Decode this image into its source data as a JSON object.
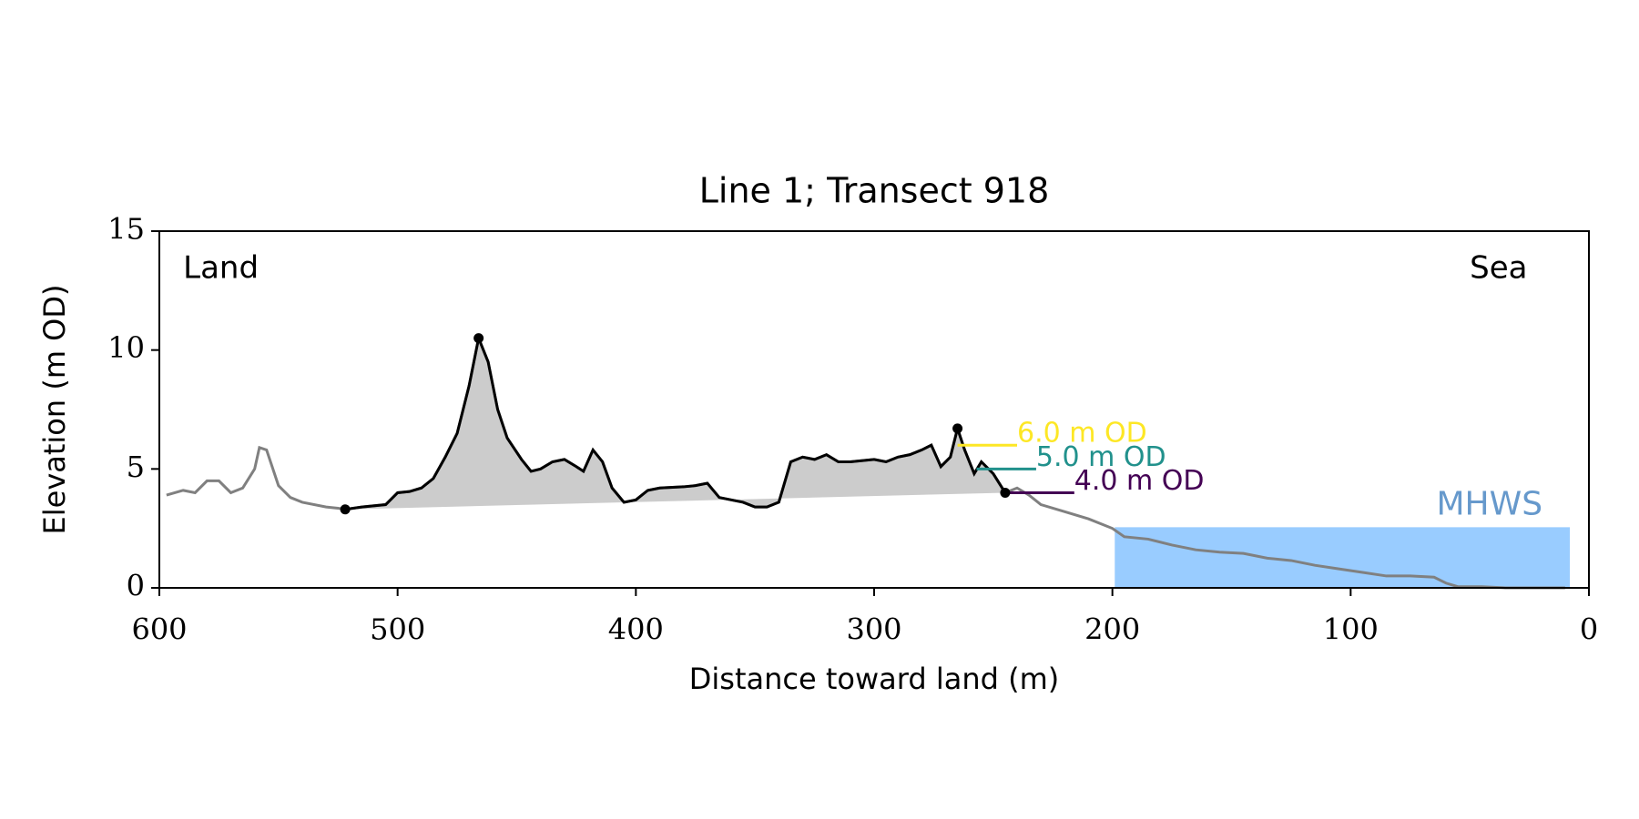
{
  "chart_data": {
    "type": "line",
    "title": "Line 1; Transect 918",
    "xlabel": "Distance toward land (m)",
    "ylabel": "Elevation (m OD)",
    "xlim": [
      600,
      0
    ],
    "ylim": [
      0,
      15
    ],
    "xticks": [
      600,
      500,
      400,
      300,
      200,
      100,
      0
    ],
    "yticks": [
      0,
      5,
      10,
      15
    ],
    "annotations": [
      {
        "text": "Land",
        "x": 590,
        "y": 13.4
      },
      {
        "text": "Sea",
        "x": 50,
        "y": 13.4
      }
    ],
    "series": [
      {
        "color": "#808080",
        "x": [
          597,
          590,
          585,
          580,
          575,
          570,
          565,
          560,
          558,
          555,
          550,
          545,
          540,
          530,
          525,
          522,
          515,
          505,
          500,
          495,
          490,
          485,
          480,
          475,
          470,
          466,
          462,
          458,
          454,
          448,
          444,
          440,
          435,
          430,
          425,
          422,
          418,
          414,
          410,
          405,
          400,
          395,
          390,
          380,
          375,
          370,
          365,
          360,
          355,
          350,
          345,
          340,
          335,
          330,
          325,
          320,
          315,
          310,
          300,
          295,
          290,
          285,
          280,
          276,
          272,
          268,
          265,
          262,
          258,
          255,
          250,
          245,
          240,
          235,
          230,
          220,
          210,
          200,
          195,
          185,
          175,
          165,
          155,
          145,
          135,
          125,
          115,
          105,
          95,
          85,
          75,
          65,
          60,
          55,
          45,
          35,
          20,
          10
        ],
        "values": [
          3.9,
          4.1,
          4.0,
          4.5,
          4.5,
          4.0,
          4.2,
          5.0,
          5.9,
          5.8,
          4.3,
          3.8,
          3.6,
          3.4,
          3.35,
          3.3,
          3.4,
          3.5,
          4.0,
          4.05,
          4.2,
          4.6,
          5.5,
          6.5,
          8.5,
          10.5,
          9.5,
          7.5,
          6.3,
          5.4,
          4.9,
          5.0,
          5.3,
          5.4,
          5.1,
          4.9,
          5.8,
          5.3,
          4.2,
          3.6,
          3.7,
          4.1,
          4.2,
          4.25,
          4.3,
          4.4,
          3.8,
          3.7,
          3.6,
          3.4,
          3.4,
          3.6,
          5.3,
          5.5,
          5.4,
          5.6,
          5.3,
          5.3,
          5.4,
          5.3,
          5.5,
          5.6,
          5.8,
          6.0,
          5.1,
          5.5,
          6.7,
          5.8,
          4.8,
          5.3,
          4.8,
          4.0,
          4.2,
          3.9,
          3.5,
          3.2,
          2.9,
          2.5,
          2.15,
          2.05,
          1.8,
          1.6,
          1.5,
          1.45,
          1.25,
          1.15,
          0.95,
          0.8,
          0.65,
          0.5,
          0.5,
          0.45,
          0.2,
          0.05,
          0.05,
          0.0,
          0.0,
          0.0
        ]
      },
      {
        "color": "#000000",
        "fill": "#cccccc",
        "x": [
          522,
          515,
          505,
          500,
          495,
          490,
          485,
          480,
          475,
          470,
          466,
          462,
          458,
          454,
          448,
          444,
          440,
          435,
          430,
          425,
          422,
          418,
          414,
          410,
          405,
          400,
          395,
          390,
          380,
          375,
          370,
          365,
          360,
          355,
          350,
          345,
          340,
          335,
          330,
          325,
          320,
          315,
          310,
          300,
          295,
          290,
          285,
          280,
          276,
          272,
          268,
          265,
          262,
          258,
          255,
          250,
          245
        ],
        "values": [
          3.3,
          3.4,
          3.5,
          4.0,
          4.05,
          4.2,
          4.6,
          5.5,
          6.5,
          8.5,
          10.5,
          9.5,
          7.5,
          6.3,
          5.4,
          4.9,
          5.0,
          5.3,
          5.4,
          5.1,
          4.9,
          5.8,
          5.3,
          4.2,
          3.6,
          3.7,
          4.1,
          4.2,
          4.25,
          4.3,
          4.4,
          3.8,
          3.7,
          3.6,
          3.4,
          3.4,
          3.6,
          5.3,
          5.5,
          5.4,
          5.6,
          5.3,
          5.3,
          5.4,
          5.3,
          5.5,
          5.6,
          5.8,
          6.0,
          5.1,
          5.5,
          6.7,
          5.8,
          4.8,
          5.3,
          4.8,
          4.0
        ]
      }
    ],
    "markers": {
      "color": "#000000",
      "x": [
        522,
        466,
        265,
        245
      ],
      "y": [
        3.3,
        10.5,
        6.7,
        4.0
      ]
    },
    "levels": [
      {
        "value": 6,
        "label": "6.0 m OD",
        "x": [
          265,
          240
        ],
        "color": "#fde725"
      },
      {
        "value": 5,
        "label": "5.0 m OD",
        "x": [
          257,
          232
        ],
        "color": "#21918c"
      },
      {
        "value": 4,
        "label": "4.0 m OD",
        "x": [
          246,
          216
        ],
        "color": "#440154"
      }
    ],
    "mhws": {
      "value": 2.55,
      "label": "MHWS",
      "x": [
        199,
        8
      ],
      "color": "#99ccff",
      "label_color": "#6699cc"
    }
  }
}
